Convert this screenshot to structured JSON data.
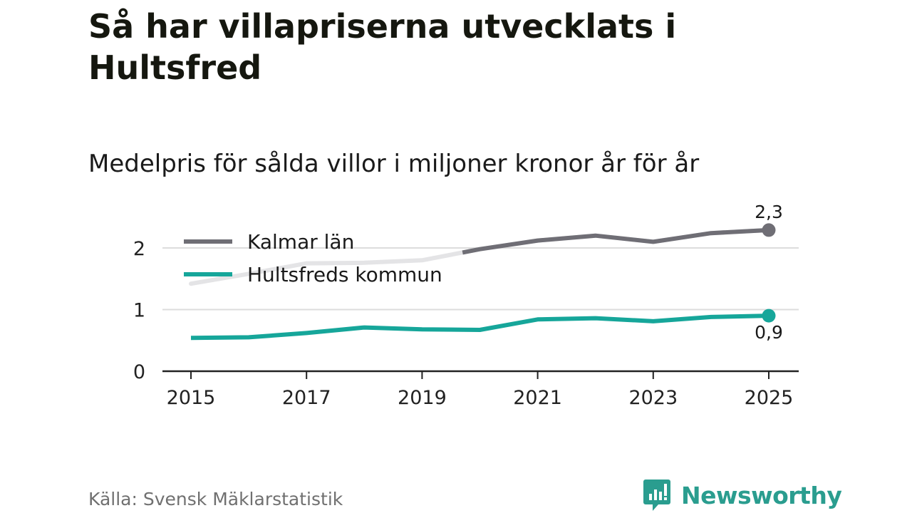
{
  "title": "Så har villapriserna utvecklats i Hultsfred",
  "subtitle": "Medelpris för sålda villor i miljoner kronor år för år",
  "source": "Källa: Svensk Mäklarstatistik",
  "brand": "Newsworthy",
  "colors": {
    "kalmar": "#6f6e75",
    "kalmar_faded": "#e4e4e6",
    "hultsfred": "#16a69a",
    "grid": "#dcdcdc",
    "axis": "#222222",
    "brand": "#2a9d8f"
  },
  "chart_data": {
    "type": "line",
    "title": "Så har villapriserna utvecklats i Hultsfred",
    "subtitle": "Medelpris för sålda villor i miljoner kronor år för år",
    "xlabel": "",
    "ylabel": "",
    "x": [
      2015,
      2016,
      2017,
      2018,
      2019,
      2020,
      2021,
      2022,
      2023,
      2024,
      2025
    ],
    "xticks": [
      "2015",
      "2017",
      "2019",
      "2021",
      "2023",
      "2025"
    ],
    "yticks": [
      "0",
      "1",
      "2"
    ],
    "ylim": [
      0,
      2.4
    ],
    "grid": true,
    "legend_position": "top-left",
    "series": [
      {
        "name": "Kalmar län",
        "values": [
          1.42,
          1.58,
          1.75,
          1.76,
          1.8,
          1.98,
          2.12,
          2.2,
          2.1,
          2.24,
          2.29
        ],
        "end_label": "2,3"
      },
      {
        "name": "Hultsfreds kommun",
        "values": [
          0.54,
          0.55,
          0.62,
          0.71,
          0.68,
          0.67,
          0.84,
          0.86,
          0.81,
          0.88,
          0.9
        ],
        "end_label": "0,9"
      }
    ]
  }
}
